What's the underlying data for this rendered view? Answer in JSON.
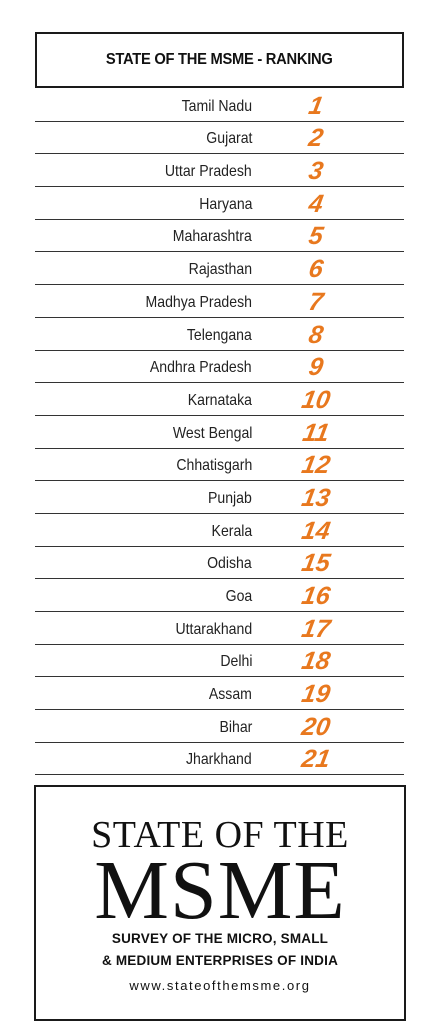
{
  "header": {
    "title": "STATE OF THE MSME - RANKING"
  },
  "ranking": [
    {
      "state": "Tamil Nadu",
      "rank": "1"
    },
    {
      "state": "Gujarat",
      "rank": "2"
    },
    {
      "state": "Uttar Pradesh",
      "rank": "3"
    },
    {
      "state": "Haryana",
      "rank": "4"
    },
    {
      "state": "Maharashtra",
      "rank": "5"
    },
    {
      "state": "Rajasthan",
      "rank": "6"
    },
    {
      "state": "Madhya Pradesh",
      "rank": "7"
    },
    {
      "state": "Telengana",
      "rank": "8"
    },
    {
      "state": "Andhra Pradesh",
      "rank": "9"
    },
    {
      "state": "Karnataka",
      "rank": "10"
    },
    {
      "state": "West Bengal",
      "rank": "11"
    },
    {
      "state": "Chhatisgarh",
      "rank": "12"
    },
    {
      "state": "Punjab",
      "rank": "13"
    },
    {
      "state": "Kerala",
      "rank": "14"
    },
    {
      "state": "Odisha",
      "rank": "15"
    },
    {
      "state": "Goa",
      "rank": "16"
    },
    {
      "state": "Uttarakhand",
      "rank": "17"
    },
    {
      "state": "Delhi",
      "rank": "18"
    },
    {
      "state": "Assam",
      "rank": "19"
    },
    {
      "state": "Bihar",
      "rank": "20"
    },
    {
      "state": "Jharkhand",
      "rank": "21"
    }
  ],
  "footer": {
    "logo_line1": "STATE OF THE",
    "logo_line2": "MSME",
    "subtitle_line1": "SURVEY OF THE MICRO, SMALL",
    "subtitle_line2": "& MEDIUM ENTERPRISES OF INDIA",
    "url": "www.stateofthemsme.org"
  },
  "colors": {
    "rank_accent": "#e8781e",
    "text": "#222222",
    "border": "#1a1a1a"
  }
}
